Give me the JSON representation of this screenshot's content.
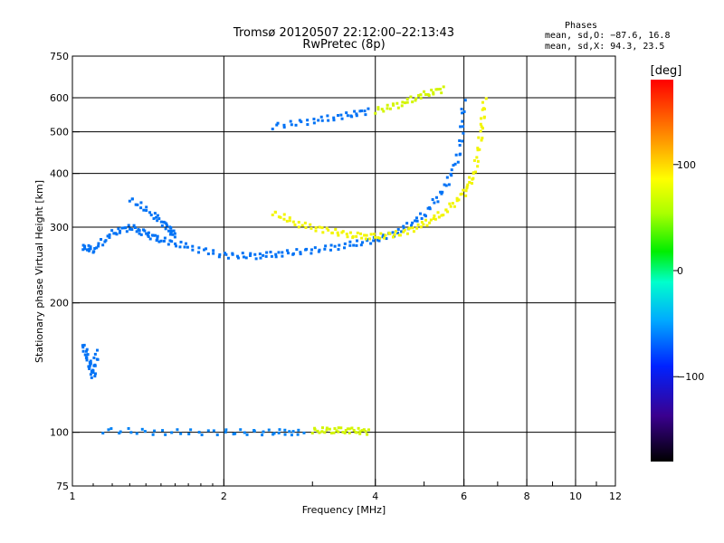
{
  "chart_data": {
    "type": "scatter",
    "title": "Tromsø 20120507 22:12:00–22:13:43",
    "subtitle": "RwPretec (8p)",
    "xlabel": "Frequency [MHz]",
    "ylabel": "Stationary phase Virtual Height [km]",
    "xscale": "log",
    "yscale": "log",
    "xlim": [
      1,
      12
    ],
    "ylim": [
      75,
      750
    ],
    "x_ticks": [
      1,
      2,
      4,
      6,
      8,
      10,
      12
    ],
    "x_tick_labels": [
      "1",
      "2",
      "4",
      "6",
      "8",
      "10",
      "12"
    ],
    "x_minor_ticks": [
      3,
      5,
      7,
      9,
      11
    ],
    "y_ticks": [
      75,
      100,
      200,
      300,
      400,
      500,
      600,
      750
    ],
    "y_tick_labels": [
      "75",
      "100",
      "200",
      "300",
      "400",
      "500",
      "600",
      "750"
    ],
    "grid": true,
    "phases_info": {
      "title": "Phases",
      "line1": "mean, sd,O: −87.6, 16.8",
      "line2": "mean, sd,X:  94.3, 23.5"
    },
    "colorbar": {
      "label": "[deg]",
      "range": [
        -180,
        180
      ],
      "ticks": [
        100,
        0,
        -100
      ],
      "tick_labels": [
        "100",
        "0",
        "−100"
      ],
      "colormap": "rainbow"
    },
    "traces": [
      {
        "phase": -100,
        "points": [
          [
            1.05,
            270
          ],
          [
            1.1,
            265
          ],
          [
            1.2,
            290
          ],
          [
            1.3,
            300
          ],
          [
            1.4,
            290
          ],
          [
            1.5,
            280
          ],
          [
            1.7,
            270
          ],
          [
            2.0,
            258
          ],
          [
            2.3,
            257
          ],
          [
            2.6,
            260
          ],
          [
            3.0,
            265
          ],
          [
            3.5,
            272
          ],
          [
            4.0,
            280
          ],
          [
            4.5,
            295
          ],
          [
            5.0,
            320
          ],
          [
            5.5,
            370
          ],
          [
            5.9,
            450
          ],
          [
            6.0,
            600
          ]
        ]
      },
      {
        "phase": 100,
        "points": [
          [
            2.5,
            325
          ],
          [
            2.8,
            305
          ],
          [
            3.2,
            295
          ],
          [
            3.6,
            287
          ],
          [
            4.0,
            285
          ],
          [
            4.5,
            290
          ],
          [
            5.0,
            305
          ],
          [
            5.5,
            325
          ],
          [
            6.0,
            360
          ],
          [
            6.3,
            400
          ],
          [
            6.5,
            500
          ],
          [
            6.6,
            600
          ]
        ]
      },
      {
        "phase": -95,
        "points": [
          [
            1.15,
            101
          ],
          [
            1.5,
            100
          ],
          [
            2.0,
            100
          ],
          [
            2.5,
            100
          ],
          [
            2.9,
            100
          ]
        ]
      },
      {
        "phase": 90,
        "points": [
          [
            3.0,
            101
          ],
          [
            3.3,
            101
          ],
          [
            3.6,
            101
          ],
          [
            3.9,
            100
          ]
        ]
      },
      {
        "phase": -100,
        "points": [
          [
            2.5,
            515
          ],
          [
            3.0,
            530
          ],
          [
            3.5,
            545
          ],
          [
            3.9,
            560
          ]
        ]
      },
      {
        "phase": 90,
        "points": [
          [
            4.0,
            560
          ],
          [
            4.5,
            580
          ],
          [
            5.0,
            610
          ],
          [
            5.5,
            630
          ]
        ]
      },
      {
        "phase": -100,
        "points": [
          [
            1.05,
            160
          ],
          [
            1.08,
            145
          ],
          [
            1.1,
            135
          ],
          [
            1.12,
            155
          ]
        ]
      },
      {
        "phase": -100,
        "points": [
          [
            1.3,
            350
          ],
          [
            1.45,
            320
          ],
          [
            1.55,
            300
          ],
          [
            1.6,
            285
          ]
        ]
      }
    ]
  }
}
